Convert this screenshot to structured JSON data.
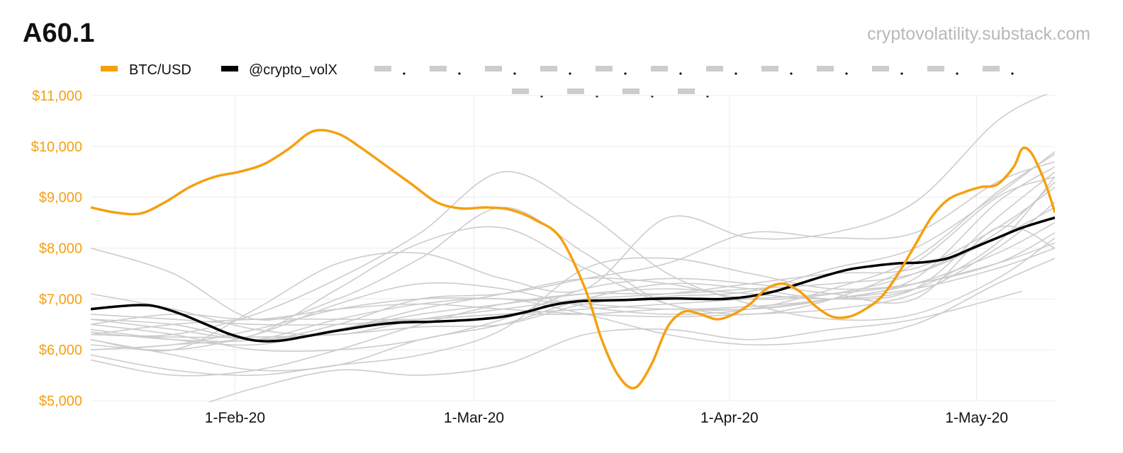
{
  "header": {
    "title": "A60.1",
    "source": "cryptovolatility.substack.com"
  },
  "colors": {
    "btc": "#f5a00f",
    "index": "#000000",
    "peers": "#cccccc",
    "grid": "#ececec",
    "ytick": "#f5a00f"
  },
  "chart_data": {
    "type": "line",
    "title": "A60.1",
    "xlabel": "",
    "ylabel": "",
    "ylim": [
      5000,
      11000
    ],
    "xlim": [
      0,
      117
    ],
    "grid": true,
    "legend_position": "top-left",
    "y_ticks": [
      {
        "value": 5000,
        "label": "$5,000"
      },
      {
        "value": 6000,
        "label": "$6,000"
      },
      {
        "value": 7000,
        "label": "$7,000"
      },
      {
        "value": 8000,
        "label": "$8,000"
      },
      {
        "value": 9000,
        "label": "$9,000"
      },
      {
        "value": 10000,
        "label": "$10,000"
      },
      {
        "value": 11000,
        "label": "$11,000"
      }
    ],
    "x_ticks": [
      {
        "value": 17.5,
        "label": "1-Feb-20"
      },
      {
        "value": 46.5,
        "label": "1-Mar-20"
      },
      {
        "value": 77.5,
        "label": "1-Apr-20"
      },
      {
        "value": 107.5,
        "label": "1-May-20"
      }
    ],
    "series": [
      {
        "name": "BTC/USD",
        "role": "btc",
        "x": [
          0,
          3,
          6,
          9,
          12,
          15,
          18,
          21,
          24,
          27,
          30,
          33,
          36,
          39,
          42,
          45,
          48,
          51,
          54,
          57,
          60,
          62,
          64,
          66,
          68,
          70,
          72,
          74,
          76,
          78,
          80,
          82,
          84,
          86,
          88,
          90,
          92,
          94,
          96,
          98,
          100,
          102,
          104,
          106,
          108,
          110,
          112,
          113,
          114,
          115,
          116,
          117
        ],
        "values": [
          8800,
          8700,
          8680,
          8900,
          9200,
          9400,
          9500,
          9650,
          9950,
          10300,
          10250,
          9950,
          9600,
          9250,
          8900,
          8780,
          8800,
          8750,
          8550,
          8200,
          7200,
          6200,
          5500,
          5250,
          5700,
          6450,
          6750,
          6700,
          6600,
          6700,
          6900,
          7200,
          7300,
          7150,
          6850,
          6650,
          6650,
          6800,
          7050,
          7500,
          8050,
          8600,
          8950,
          9100,
          9200,
          9250,
          9600,
          9950,
          9900,
          9600,
          9200,
          8700
        ]
      },
      {
        "name": "@crypto_volX",
        "role": "index",
        "x": [
          0,
          3,
          6,
          8,
          11,
          14,
          17,
          20,
          23,
          26,
          29,
          32,
          35,
          38,
          41,
          44,
          47,
          50,
          53,
          56,
          59,
          62,
          65,
          68,
          71,
          74,
          77,
          80,
          83,
          86,
          89,
          92,
          95,
          98,
          101,
          104,
          107,
          110,
          113,
          117
        ],
        "values": [
          6800,
          6850,
          6880,
          6850,
          6700,
          6500,
          6300,
          6180,
          6180,
          6260,
          6350,
          6430,
          6500,
          6540,
          6550,
          6570,
          6600,
          6650,
          6750,
          6880,
          6950,
          6970,
          6980,
          7000,
          7010,
          7000,
          7000,
          7050,
          7150,
          7300,
          7450,
          7580,
          7650,
          7700,
          7720,
          7800,
          8000,
          8200,
          8400,
          8600
        ]
      }
    ],
    "peer_series": [
      {
        "x": [
          0,
          10,
          20,
          30,
          40,
          50,
          60,
          70,
          80,
          90,
          100,
          110,
          117
        ],
        "values": [
          6300,
          6250,
          6250,
          6300,
          6450,
          6500,
          6900,
          7050,
          7150,
          7600,
          8000,
          9050,
          9900
        ]
      },
      {
        "x": [
          0,
          10,
          20,
          30,
          40,
          50,
          60,
          70,
          80,
          90,
          100,
          110,
          117
        ],
        "values": [
          6100,
          6000,
          6300,
          6900,
          7300,
          7200,
          6850,
          6700,
          6800,
          7200,
          7800,
          9100,
          9850
        ]
      },
      {
        "x": [
          0,
          10,
          20,
          30,
          40,
          50,
          60,
          70,
          80,
          90,
          100,
          110,
          117
        ],
        "values": [
          6600,
          6400,
          6200,
          6400,
          6800,
          7100,
          7400,
          7300,
          7000,
          7100,
          7500,
          8300,
          9300
        ]
      },
      {
        "x": [
          0,
          10,
          20,
          30,
          40,
          50,
          60,
          70,
          80,
          90,
          100,
          110,
          117
        ],
        "values": [
          6200,
          5900,
          5600,
          5700,
          6200,
          6500,
          7000,
          7300,
          7200,
          7000,
          7200,
          8600,
          9500
        ]
      },
      {
        "x": [
          0,
          10,
          20,
          30,
          40,
          50,
          60,
          70,
          80,
          90,
          100,
          110,
          117
        ],
        "values": [
          6500,
          6700,
          6600,
          6800,
          6900,
          6800,
          6700,
          6650,
          6700,
          6800,
          7100,
          8000,
          8900
        ]
      },
      {
        "x": [
          0,
          10,
          20,
          30,
          40,
          50,
          60,
          70,
          80,
          90,
          100,
          110,
          117
        ],
        "values": [
          7100,
          6800,
          6400,
          6300,
          6600,
          6800,
          7000,
          7100,
          7300,
          7500,
          7600,
          8400,
          9200
        ]
      },
      {
        "x": [
          0,
          10,
          20,
          30,
          40,
          50,
          60,
          70,
          80,
          90,
          100,
          110,
          117
        ],
        "values": [
          8000,
          7500,
          6600,
          7000,
          7800,
          8800,
          7900,
          6900,
          6800,
          7000,
          7400,
          8900,
          9600
        ]
      },
      {
        "x": [
          0,
          10,
          20,
          30,
          40,
          50,
          60,
          70,
          80,
          90,
          100,
          110,
          117
        ],
        "values": [
          6000,
          6100,
          6400,
          6800,
          7000,
          7000,
          6900,
          6800,
          6850,
          7000,
          7300,
          7900,
          8500
        ]
      },
      {
        "x": [
          0,
          10,
          20,
          30,
          40,
          50,
          60,
          70,
          80,
          90,
          100,
          110,
          117
        ],
        "values": [
          5900,
          5600,
          5500,
          5700,
          5900,
          6400,
          7600,
          7800,
          7500,
          7200,
          7300,
          7700,
          8300
        ]
      },
      {
        "x": [
          0,
          10,
          20,
          30,
          40,
          50,
          60,
          70,
          80,
          90,
          100,
          110,
          117
        ],
        "values": [
          6400,
          6200,
          6100,
          6400,
          6700,
          6900,
          7100,
          7200,
          7100,
          7000,
          7200,
          8100,
          9400
        ]
      },
      {
        "x": [
          0,
          10,
          20,
          30,
          40,
          50,
          60,
          70,
          80,
          90,
          100,
          110,
          117
        ],
        "values": [
          6300,
          6300,
          6700,
          7400,
          8300,
          9500,
          8700,
          7500,
          6900,
          6600,
          6700,
          7400,
          8200
        ]
      },
      {
        "x": [
          0,
          10,
          20,
          30,
          40,
          50,
          60,
          70,
          80,
          90,
          100,
          110,
          117
        ],
        "values": [
          6700,
          6600,
          6500,
          6500,
          6600,
          6700,
          6800,
          6900,
          7000,
          7100,
          7300,
          7700,
          8100
        ]
      },
      {
        "x": [
          0,
          10,
          20,
          30,
          40,
          50,
          60,
          70,
          80,
          90,
          100,
          110,
          117
        ],
        "values": [
          6200,
          6000,
          6800,
          7700,
          7900,
          7400,
          7200,
          8600,
          8200,
          8300,
          8900,
          10500,
          11100
        ]
      },
      {
        "x": [
          0,
          10,
          20,
          30,
          40,
          50,
          60,
          70,
          80,
          90,
          100,
          110,
          117
        ],
        "values": [
          5800,
          5500,
          5600,
          6000,
          6500,
          6900,
          7100,
          7100,
          7200,
          7300,
          7500,
          8200,
          8800
        ]
      },
      {
        "x": [
          0,
          10,
          20,
          30,
          40,
          50,
          60,
          70,
          80,
          90,
          100,
          110,
          117
        ],
        "values": [
          6500,
          6300,
          6000,
          6000,
          6200,
          6600,
          7200,
          7400,
          7300,
          7100,
          7000,
          8400,
          8000
        ]
      },
      {
        "x": [
          0,
          10,
          20,
          30,
          40,
          50,
          60,
          70,
          80,
          90,
          100,
          110,
          117
        ],
        "values": [
          6300,
          6500,
          6600,
          6600,
          6600,
          6700,
          6700,
          6800,
          6800,
          7000,
          7200,
          7600,
          8000
        ]
      },
      {
        "x": [
          0,
          10,
          20,
          30,
          40,
          50,
          60,
          70,
          80,
          90,
          100,
          110,
          117
        ],
        "values": [
          6000,
          6100,
          6300,
          7200,
          8100,
          8400,
          7600,
          6900,
          6700,
          7000,
          7700,
          9000,
          9400
        ]
      },
      {
        "x": [
          0,
          10,
          20,
          30,
          40,
          50,
          60,
          70,
          80,
          90,
          100,
          110,
          117
        ],
        "values": [
          6600,
          6500,
          6200,
          6500,
          7000,
          7100,
          7400,
          7700,
          8300,
          8200,
          8300,
          9300,
          9700
        ]
      },
      {
        "x": [
          14,
          20,
          30,
          40,
          50,
          60,
          70,
          80,
          90,
          100,
          113
        ],
        "values": [
          4950,
          5250,
          5600,
          5500,
          5700,
          6300,
          6400,
          6200,
          6400,
          6600,
          7150
        ]
      },
      {
        "x": [
          0,
          10,
          20,
          30,
          40,
          50,
          60,
          70,
          80,
          90,
          100,
          110,
          117
        ],
        "values": [
          6350,
          6200,
          6200,
          6600,
          6900,
          7000,
          6700,
          6300,
          6100,
          6200,
          6500,
          7300,
          7800
        ]
      }
    ]
  }
}
